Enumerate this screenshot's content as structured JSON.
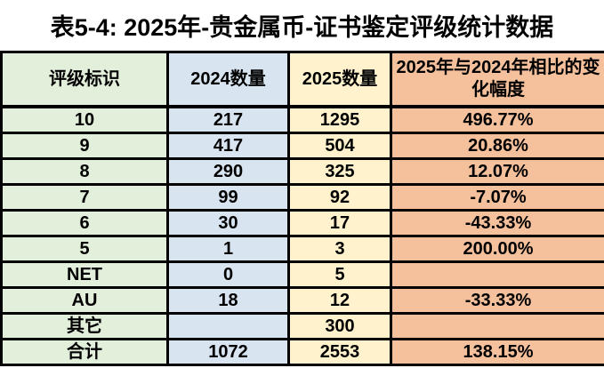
{
  "title": "表5-4: 2025年-贵金属币-证书鉴定评级统计数据",
  "table": {
    "columns": [
      {
        "label": "评级标识",
        "color": "#e2efda"
      },
      {
        "label": "2024数量",
        "color": "#d8e5f1"
      },
      {
        "label": "2025数量",
        "color": "#fff2cc"
      },
      {
        "label": "2025年与2024年相比的变化幅度",
        "color": "#f5c09c"
      }
    ],
    "rows": [
      {
        "grade": "10",
        "y2024": "217",
        "y2025": "1295",
        "change": "496.77%"
      },
      {
        "grade": "9",
        "y2024": "417",
        "y2025": "504",
        "change": "20.86%"
      },
      {
        "grade": "8",
        "y2024": "290",
        "y2025": "325",
        "change": "12.07%"
      },
      {
        "grade": "7",
        "y2024": "99",
        "y2025": "92",
        "change": "-7.07%"
      },
      {
        "grade": "6",
        "y2024": "30",
        "y2025": "17",
        "change": "-43.33%"
      },
      {
        "grade": "5",
        "y2024": "1",
        "y2025": "3",
        "change": "200.00%"
      },
      {
        "grade": "NET",
        "y2024": "0",
        "y2025": "5",
        "change": ""
      },
      {
        "grade": "AU",
        "y2024": "18",
        "y2025": "12",
        "change": "-33.33%"
      },
      {
        "grade": "其它",
        "y2024": "",
        "y2025": "300",
        "change": ""
      },
      {
        "grade": "合计",
        "y2024": "1072",
        "y2025": "2553",
        "change": "138.15%"
      }
    ]
  },
  "colors": {
    "border": "#000000",
    "text": "#000000",
    "background": "#ffffff"
  }
}
